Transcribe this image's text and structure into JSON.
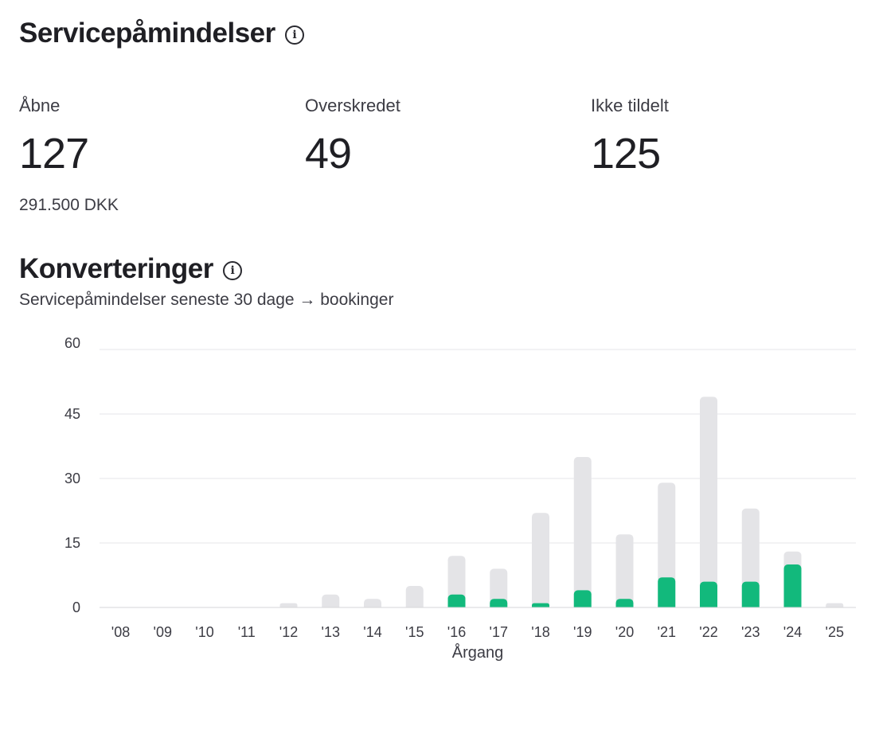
{
  "reminders": {
    "title": "Servicepåmindelser",
    "info_icon": "info-icon",
    "stats": [
      {
        "label": "Åbne",
        "value": "127",
        "sub": "291.500 DKK"
      },
      {
        "label": "Overskredet",
        "value": "49"
      },
      {
        "label": "Ikke tildelt",
        "value": "125"
      }
    ]
  },
  "conversions": {
    "title": "Konverteringer",
    "info_icon": "info-icon",
    "subtitle": "Servicepåmindelser seneste 30 dage → bookinger"
  },
  "chart_data": {
    "type": "bar",
    "xlabel": "Årgang",
    "ylabel": "",
    "ylim": [
      0,
      60
    ],
    "yticks": [
      0,
      15,
      30,
      45,
      60
    ],
    "grid": true,
    "stacked": false,
    "categories": [
      "'08",
      "'09",
      "'10",
      "'11",
      "'12",
      "'13",
      "'14",
      "'15",
      "'16",
      "'17",
      "'18",
      "'19",
      "'20",
      "'21",
      "'22",
      "'23",
      "'24",
      "'25"
    ],
    "series": [
      {
        "values": [
          0,
          0,
          0,
          0,
          1,
          3,
          2,
          5,
          12,
          9,
          22,
          35,
          17,
          29,
          49,
          23,
          13,
          1
        ],
        "color": "#e4e4e7"
      },
      {
        "values": [
          0,
          0,
          0,
          0,
          0,
          0,
          0,
          0,
          3,
          2,
          1,
          4,
          2,
          7,
          6,
          6,
          10,
          0
        ],
        "color": "#12b97c"
      }
    ]
  }
}
